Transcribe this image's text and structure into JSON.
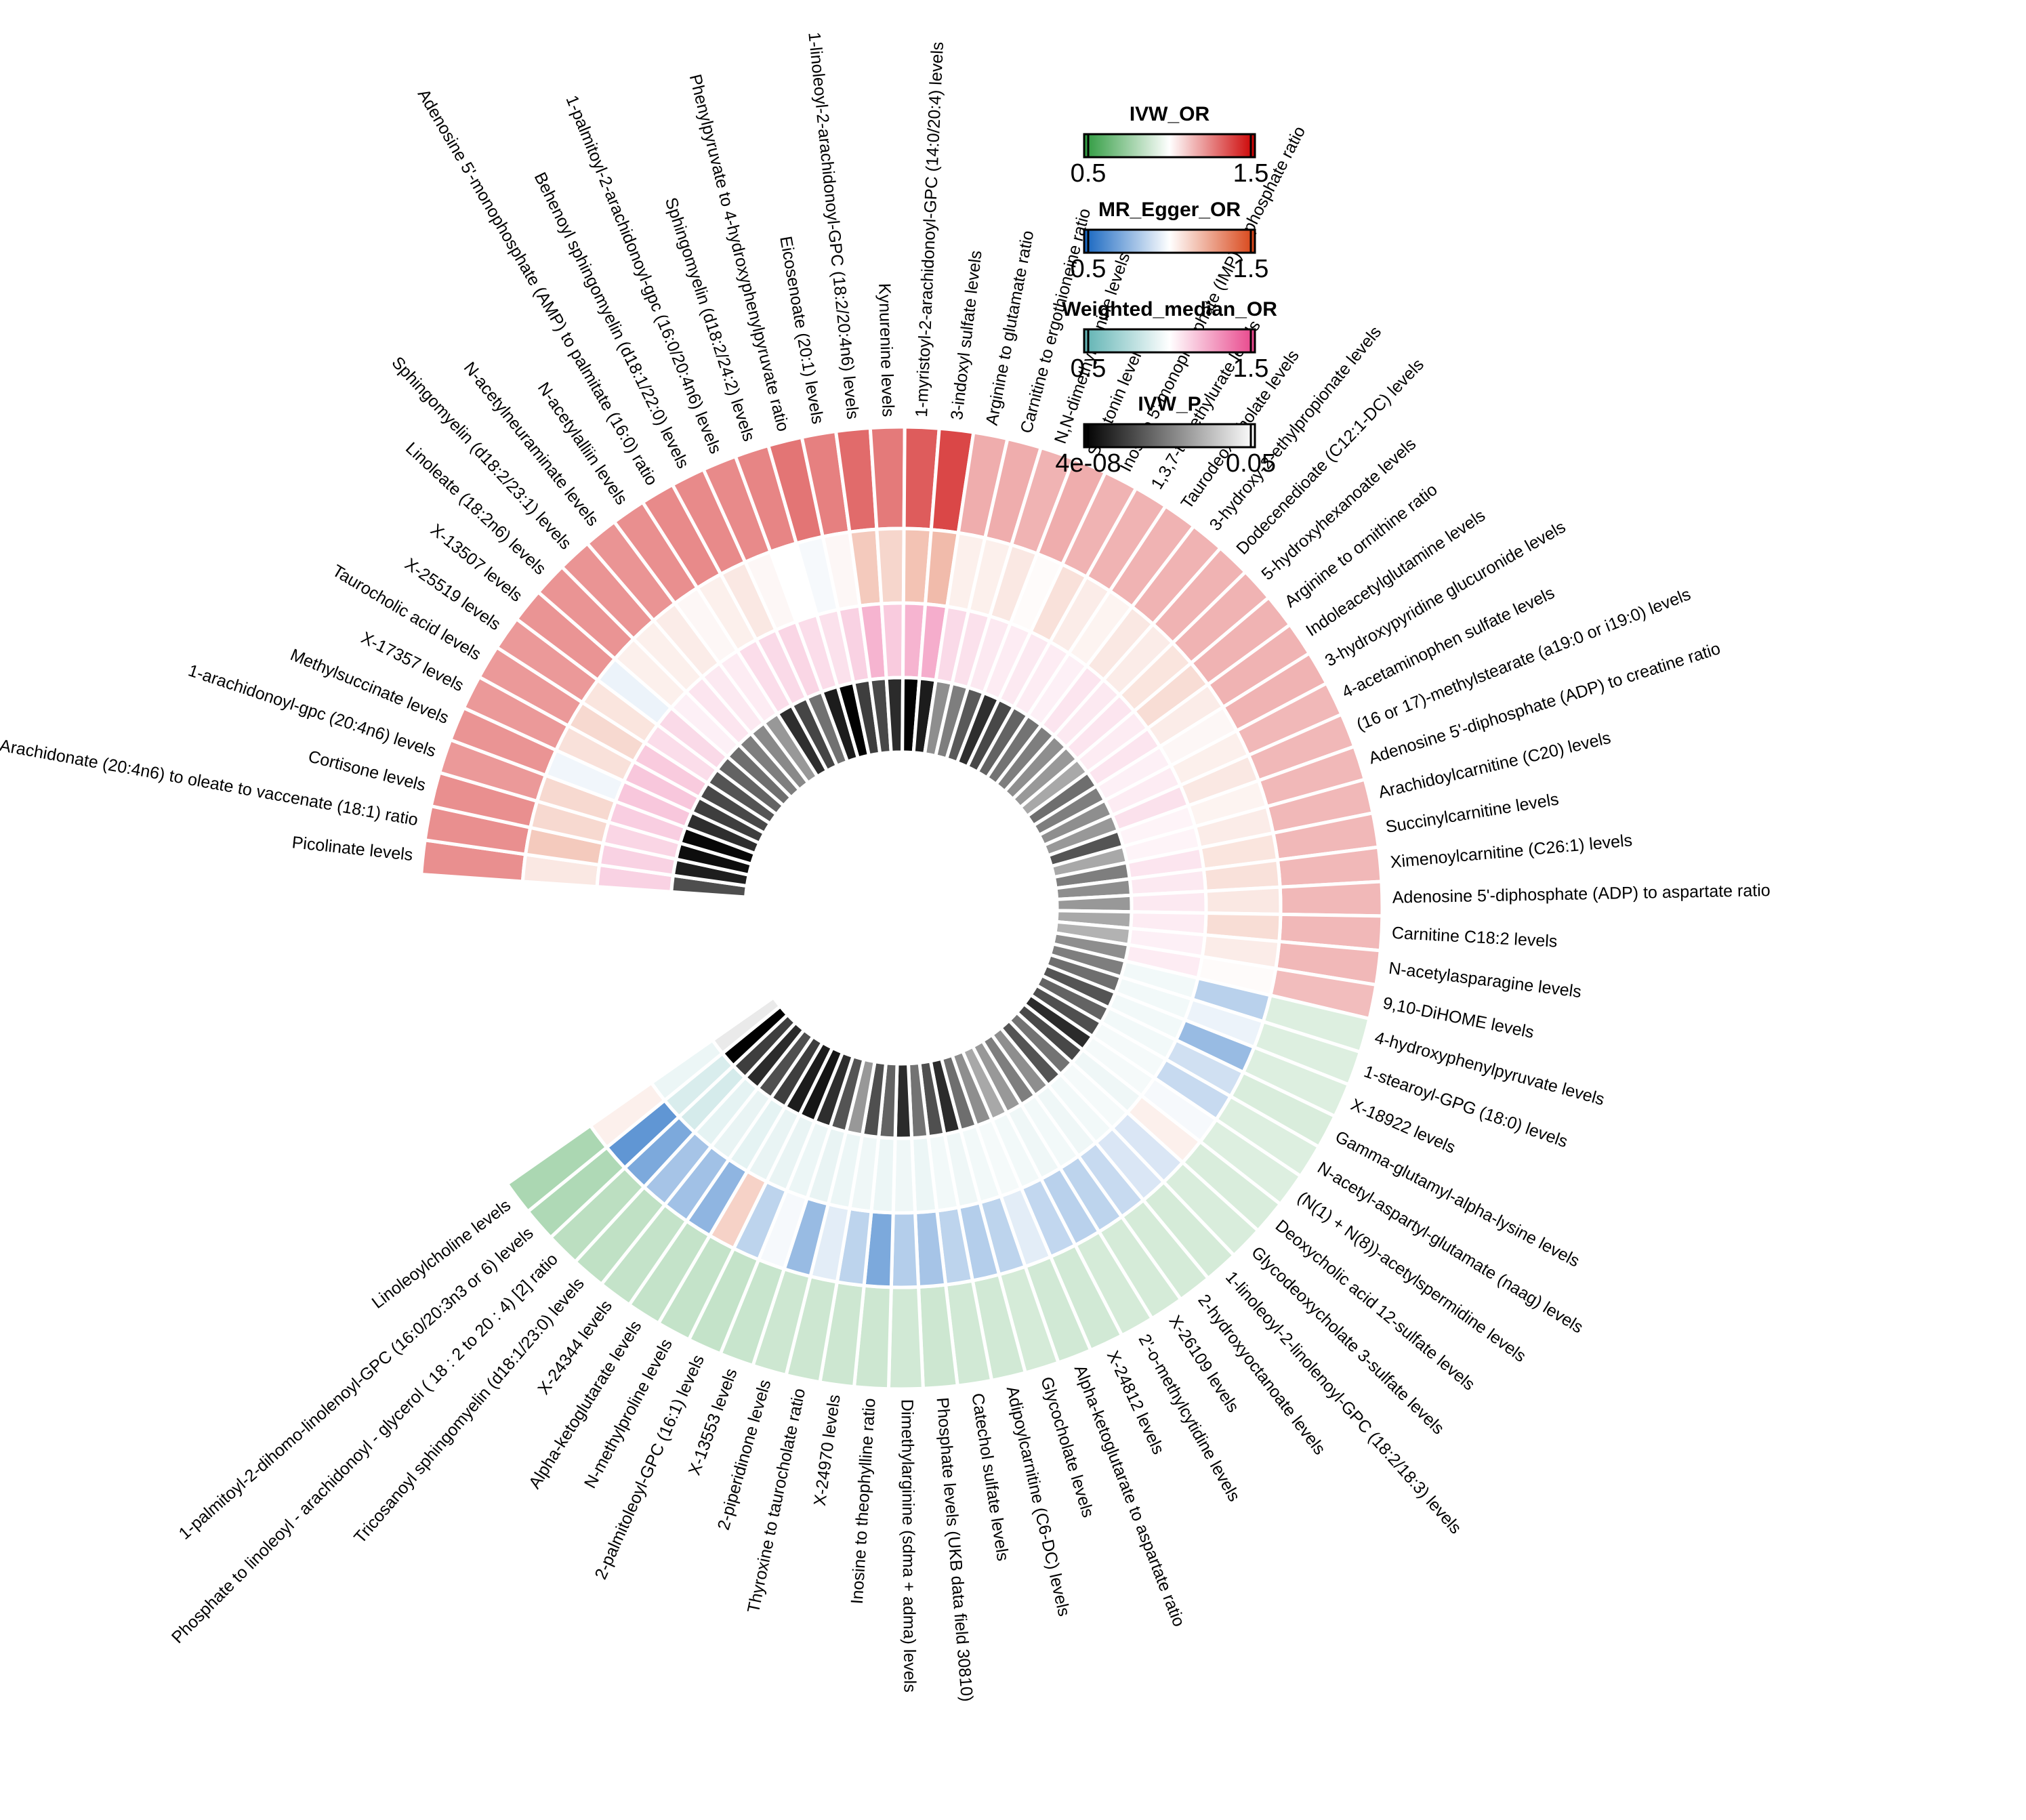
{
  "chart_data": {
    "type": "heatmap",
    "layout": "circular",
    "rings_outer_to_inner": [
      "IVW_OR",
      "MR_Egger_OR",
      "Weighted_median_OR",
      "IVW_P"
    ],
    "legends": [
      {
        "title": "IVW_OR",
        "min_label": "0.5",
        "max_label": "1.5",
        "min": 0.5,
        "max": 1.5,
        "colors": [
          "#2d9a3e",
          "#ffffff",
          "#cc0000"
        ]
      },
      {
        "title": "MR_Egger_OR",
        "min_label": "0.5",
        "max_label": "1.5",
        "min": 0.5,
        "max": 1.5,
        "colors": [
          "#1565c0",
          "#ffffff",
          "#d84315"
        ]
      },
      {
        "title": "Weighted_median_OR",
        "min_label": "0.5",
        "max_label": "1.5",
        "min": 0.5,
        "max": 1.5,
        "colors": [
          "#5fb3b3",
          "#ffffff",
          "#e8448a"
        ]
      },
      {
        "title": "IVW_P",
        "min_label": "4e-08",
        "max_label": "0.05",
        "min": 4e-08,
        "max": 0.05,
        "colors": [
          "#000000",
          "#ffffff"
        ]
      }
    ],
    "metabolites": [
      {
        "name": "Picolinate levels",
        "ivw_or": 1.22,
        "egger_or": 1.06,
        "wm_or": 1.12,
        "ivw_p": 0.0153
      },
      {
        "name": "Arachidonate (20:4n6) to oleate to vaccenate (18:1) ratio",
        "ivw_or": 1.22,
        "egger_or": 1.14,
        "wm_or": 1.12,
        "ivw_p": 0.0059
      },
      {
        "name": "Cortisone levels",
        "ivw_or": 1.22,
        "egger_or": 1.1,
        "wm_or": 1.11,
        "ivw_p": 0.0026
      },
      {
        "name": "1-arachidonoyl-gpc (20:4n6) levels",
        "ivw_or": 1.2,
        "egger_or": 1.1,
        "wm_or": 1.13,
        "ivw_p": 0.0014
      },
      {
        "name": "Methylsuccinate levels",
        "ivw_or": 1.21,
        "egger_or": 0.97,
        "wm_or": 1.15,
        "ivw_p": 0.0091
      },
      {
        "name": "X-17357 levels",
        "ivw_or": 1.2,
        "egger_or": 1.08,
        "wm_or": 1.15,
        "ivw_p": 0.0121
      },
      {
        "name": "Taurocholic acid levels",
        "ivw_or": 1.2,
        "egger_or": 1.1,
        "wm_or": 1.14,
        "ivw_p": 0.0142
      },
      {
        "name": "X-25519 levels",
        "ivw_or": 1.2,
        "egger_or": 1.07,
        "wm_or": 1.09,
        "ivw_p": 0.0164
      },
      {
        "name": "X-13507 levels",
        "ivw_or": 1.21,
        "egger_or": 0.96,
        "wm_or": 1.1,
        "ivw_p": 0.0195
      },
      {
        "name": "Linoleate (18:2n6) levels",
        "ivw_or": 1.21,
        "egger_or": 1.04,
        "wm_or": 1.04,
        "ivw_p": 0.0216
      },
      {
        "name": "Sphingomyelin (d18:2/23:1) levels",
        "ivw_or": 1.21,
        "egger_or": 1.04,
        "wm_or": 1.07,
        "ivw_p": 0.0247
      },
      {
        "name": "N-acetylneuraminate levels",
        "ivw_or": 1.21,
        "egger_or": 1.05,
        "wm_or": 1.06,
        "ivw_p": 0.0268
      },
      {
        "name": "N-acetylalliin levels",
        "ivw_or": 1.22,
        "egger_or": 1.02,
        "wm_or": 1.05,
        "ivw_p": 0.0298
      },
      {
        "name": "Adenosine 5'-monophosphate (AMP) to palmitate (16:0) ratio",
        "ivw_or": 1.23,
        "egger_or": 1.04,
        "wm_or": 1.09,
        "ivw_p": 0.0091
      },
      {
        "name": "Behenoyl sphingomyelin (d18:1/22:0) levels",
        "ivw_or": 1.23,
        "egger_or": 1.06,
        "wm_or": 1.1,
        "ivw_p": 0.0135
      },
      {
        "name": "1-palmitoyl-2-arachidonoyl-gpc (16:0/20:4n6) levels",
        "ivw_or": 1.23,
        "egger_or": 1.02,
        "wm_or": 1.11,
        "ivw_p": 0.0222
      },
      {
        "name": "Sphingomyelin (d18:2/24:2) levels",
        "ivw_or": 1.24,
        "egger_or": 1.0,
        "wm_or": 1.09,
        "ivw_p": 0.0054
      },
      {
        "name": "Phenylpyruvate to 4-hydroxyphenylpyruvate ratio",
        "ivw_or": 1.27,
        "egger_or": 0.98,
        "wm_or": 1.08,
        "ivw_p": 0.0002
      },
      {
        "name": "Eicosenoate (20:1) levels",
        "ivw_or": 1.25,
        "egger_or": 1.02,
        "wm_or": 1.12,
        "ivw_p": 0.0121
      },
      {
        "name": "1-linoleoyl-2-arachidonoyl-GPC (18:2/20:4n6) levels",
        "ivw_or": 1.29,
        "egger_or": 1.14,
        "wm_or": 1.2,
        "ivw_p": 0.0142
      },
      {
        "name": "Kynurenine levels",
        "ivw_or": 1.26,
        "egger_or": 1.11,
        "wm_or": 1.14,
        "ivw_p": 0.0085
      },
      {
        "name": "1-myristoyl-2-arachidonoyl-GPC (14:0/20:4) levels",
        "ivw_or": 1.32,
        "egger_or": 1.16,
        "wm_or": 1.2,
        "ivw_p": 0.0003
      },
      {
        "name": "3-indoxyl sulfate levels",
        "ivw_or": 1.36,
        "egger_or": 1.18,
        "wm_or": 1.22,
        "ivw_p": 0.0054
      },
      {
        "name": "Arginine to glutamate ratio",
        "ivw_or": 1.16,
        "egger_or": 1.04,
        "wm_or": 1.1,
        "ivw_p": 0.0278
      },
      {
        "name": "Carnitine to ergothioneine ratio",
        "ivw_or": 1.16,
        "egger_or": 1.04,
        "wm_or": 1.08,
        "ivw_p": 0.0247
      },
      {
        "name": "N,N-dimethylalanine levels",
        "ivw_or": 1.15,
        "egger_or": 1.06,
        "wm_or": 1.06,
        "ivw_p": 0.0175
      },
      {
        "name": "Serotonin levels",
        "ivw_or": 1.16,
        "egger_or": 1.01,
        "wm_or": 1.05,
        "ivw_p": 0.0091
      },
      {
        "name": "Inosine 5'-monophosphate (IMP) to phosphate ratio",
        "ivw_or": 1.15,
        "egger_or": 1.08,
        "wm_or": 1.06,
        "ivw_p": 0.0142
      },
      {
        "name": "1,3,7-trimethylurate levels",
        "ivw_or": 1.15,
        "egger_or": 1.05,
        "wm_or": 1.05,
        "ivw_p": 0.0195
      },
      {
        "name": "Taurodeoxycholate levels",
        "ivw_or": 1.15,
        "egger_or": 1.03,
        "wm_or": 1.04,
        "ivw_p": 0.0226
      },
      {
        "name": "3-hydroxy-2-ethylpropionate levels",
        "ivw_or": 1.15,
        "egger_or": 1.06,
        "wm_or": 1.07,
        "ivw_p": 0.0247
      },
      {
        "name": "Dodecenedioate (C12:1-DC) levels",
        "ivw_or": 1.15,
        "egger_or": 1.05,
        "wm_or": 1.06,
        "ivw_p": 0.0278
      },
      {
        "name": "5-hydroxyhexanoate levels",
        "ivw_or": 1.15,
        "egger_or": 1.07,
        "wm_or": 1.07,
        "ivw_p": 0.0298
      },
      {
        "name": "Arginine to ornithine ratio",
        "ivw_or": 1.15,
        "egger_or": 1.09,
        "wm_or": 1.05,
        "ivw_p": 0.0329
      },
      {
        "name": "Indoleacetylglutamine levels",
        "ivw_or": 1.15,
        "egger_or": 1.05,
        "wm_or": 1.07,
        "ivw_p": 0.0216
      },
      {
        "name": "3-hydroxypyridine glucuronide levels",
        "ivw_or": 1.15,
        "egger_or": 1.02,
        "wm_or": 1.04,
        "ivw_p": 0.0247
      },
      {
        "name": "4-acetaminophen sulfate levels",
        "ivw_or": 1.14,
        "egger_or": 1.04,
        "wm_or": 1.05,
        "ivw_p": 0.0278
      },
      {
        "name": "(16 or 17)-methylstearate (a19:0 or i19:0) levels",
        "ivw_or": 1.14,
        "egger_or": 1.06,
        "wm_or": 1.08,
        "ivw_p": 0.0298
      },
      {
        "name": "Adenosine 5'-diphosphate (ADP) to creatine ratio",
        "ivw_or": 1.14,
        "egger_or": 1.03,
        "wm_or": 1.03,
        "ivw_p": 0.0164
      },
      {
        "name": "Arachidoylcarnitine (C20) levels",
        "ivw_or": 1.14,
        "egger_or": 1.05,
        "wm_or": 1.03,
        "ivw_p": 0.0329
      },
      {
        "name": "Succinylcarnitine levels",
        "ivw_or": 1.14,
        "egger_or": 1.07,
        "wm_or": 1.07,
        "ivw_p": 0.0247
      },
      {
        "name": "Ximenoylcarnitine (C26:1) levels",
        "ivw_or": 1.14,
        "egger_or": 1.08,
        "wm_or": 1.06,
        "ivw_p": 0.0278
      },
      {
        "name": "Adenosine 5'-diphosphate (ADP) to aspartate ratio",
        "ivw_or": 1.14,
        "egger_or": 1.06,
        "wm_or": 1.06,
        "ivw_p": 0.0298
      },
      {
        "name": "Carnitine C18:2 levels",
        "ivw_or": 1.14,
        "egger_or": 1.09,
        "wm_or": 1.05,
        "ivw_p": 0.0329
      },
      {
        "name": "N-acetylasparagine levels",
        "ivw_or": 1.14,
        "egger_or": 1.05,
        "wm_or": 1.04,
        "ivw_p": 0.0349
      },
      {
        "name": "9,10-DiHOME levels",
        "ivw_or": 1.13,
        "egger_or": 1.01,
        "wm_or": 1.05,
        "ivw_p": 0.0278
      },
      {
        "name": "4-hydroxyphenylpyruvate levels",
        "ivw_or": 0.92,
        "egger_or": 0.85,
        "wm_or": 0.96,
        "ivw_p": 0.0247
      },
      {
        "name": "1-stearoyl-GPG (18:0) levels",
        "ivw_or": 0.92,
        "egger_or": 0.96,
        "wm_or": 0.96,
        "ivw_p": 0.0216
      },
      {
        "name": "X-18922 levels",
        "ivw_or": 0.92,
        "egger_or": 0.78,
        "wm_or": 0.96,
        "ivw_p": 0.0164
      },
      {
        "name": "Gamma-glutamyl-alpha-lysine levels",
        "ivw_or": 0.91,
        "egger_or": 0.9,
        "wm_or": 0.96,
        "ivw_p": 0.0195
      },
      {
        "name": "N-acetyl-aspartyl-glutamate (naag) levels",
        "ivw_or": 0.92,
        "egger_or": 0.88,
        "wm_or": 0.97,
        "ivw_p": 0.0154
      },
      {
        "name": "(N(1) + N(8))-acetylspermidine levels",
        "ivw_or": 0.92,
        "egger_or": 0.98,
        "wm_or": 0.97,
        "ivw_p": 0.0085
      },
      {
        "name": "Deoxycholic acid 12-sulfate levels",
        "ivw_or": 0.91,
        "egger_or": 1.04,
        "wm_or": 0.95,
        "ivw_p": 0.0142
      },
      {
        "name": "Glycodeoxycholate 3-sulfate levels",
        "ivw_or": 0.91,
        "egger_or": 0.92,
        "wm_or": 0.97,
        "ivw_p": 0.0226
      },
      {
        "name": "1-linoleoyl-2-linolenoyl-GPC (18:2/18:3) levels",
        "ivw_or": 0.9,
        "egger_or": 0.92,
        "wm_or": 0.96,
        "ivw_p": 0.0164
      },
      {
        "name": "2-hydroxyoctanoate levels",
        "ivw_or": 0.9,
        "egger_or": 0.88,
        "wm_or": 0.95,
        "ivw_p": 0.0278
      },
      {
        "name": "X-26109 levels",
        "ivw_or": 0.9,
        "egger_or": 0.86,
        "wm_or": 0.96,
        "ivw_p": 0.0247
      },
      {
        "name": "2'-o-methylcytidine levels",
        "ivw_or": 0.9,
        "egger_or": 0.85,
        "wm_or": 0.95,
        "ivw_p": 0.0298
      },
      {
        "name": "X-24812 levels",
        "ivw_or": 0.89,
        "egger_or": 0.87,
        "wm_or": 0.96,
        "ivw_p": 0.0329
      },
      {
        "name": "Alpha-ketoglutarate to aspartate ratio",
        "ivw_or": 0.89,
        "egger_or": 0.94,
        "wm_or": 0.97,
        "ivw_p": 0.0278
      },
      {
        "name": "Glycocholate levels",
        "ivw_or": 0.9,
        "egger_or": 0.86,
        "wm_or": 0.96,
        "ivw_p": 0.0216
      },
      {
        "name": "Adipoylcarnitine (C6-DC) levels",
        "ivw_or": 0.89,
        "egger_or": 0.84,
        "wm_or": 0.95,
        "ivw_p": 0.0085
      },
      {
        "name": "Catechol sulfate levels",
        "ivw_or": 0.89,
        "egger_or": 0.86,
        "wm_or": 0.96,
        "ivw_p": 0.0154
      },
      {
        "name": "Phosphate levels (UKB data field 30810)",
        "ivw_or": 0.88,
        "egger_or": 0.81,
        "wm_or": 0.94,
        "ivw_p": 0.0226
      },
      {
        "name": "Dimethylarginine (sdma + adma) levels",
        "ivw_or": 0.89,
        "egger_or": 0.84,
        "wm_or": 0.95,
        "ivw_p": 0.0085
      },
      {
        "name": "Inosine to theophylline ratio",
        "ivw_or": 0.88,
        "egger_or": 0.72,
        "wm_or": 0.94,
        "ivw_p": 0.0195
      },
      {
        "name": "X-24970 levels",
        "ivw_or": 0.88,
        "egger_or": 0.86,
        "wm_or": 0.95,
        "ivw_p": 0.0154
      },
      {
        "name": "Thyroxine to taurocholate ratio",
        "ivw_or": 0.88,
        "egger_or": 0.94,
        "wm_or": 0.94,
        "ivw_p": 0.0298
      },
      {
        "name": "2-piperidinone levels",
        "ivw_or": 0.88,
        "egger_or": 0.78,
        "wm_or": 0.93,
        "ivw_p": 0.0164
      },
      {
        "name": "X-13553 levels",
        "ivw_or": 0.87,
        "egger_or": 0.98,
        "wm_or": 0.94,
        "ivw_p": 0.0091
      },
      {
        "name": "2-palmitoleoyl-GPC (16:1) levels",
        "ivw_or": 0.86,
        "egger_or": 0.86,
        "wm_or": 0.93,
        "ivw_p": 0.0042
      },
      {
        "name": "N-methylproline levels",
        "ivw_or": 0.86,
        "egger_or": 1.12,
        "wm_or": 0.93,
        "ivw_p": 0.0054
      },
      {
        "name": "Alpha-ketoglutarate levels",
        "ivw_or": 0.86,
        "egger_or": 0.76,
        "wm_or": 0.92,
        "ivw_p": 0.0122
      },
      {
        "name": "X-24344 levels",
        "ivw_or": 0.86,
        "egger_or": 0.8,
        "wm_or": 0.93,
        "ivw_p": 0.0154
      },
      {
        "name": "Tricosanoyl sphingomyelin (d18:1/23:0) levels",
        "ivw_or": 0.85,
        "egger_or": 0.81,
        "wm_or": 0.92,
        "ivw_p": 0.0085
      },
      {
        "name": "Phosphate to linoleoyl - arachidonoyl - glycerol ( 18 : 2 to 20 : 4) [2] ratio",
        "ivw_or": 0.84,
        "egger_or": 0.72,
        "wm_or": 0.87,
        "ivw_p": 0.0122
      },
      {
        "name": "1-palmitoyl-2-dihomo-linolenoyl-GPC (16:0/20:3n3 or 6) levels",
        "ivw_or": 0.81,
        "egger_or": 0.66,
        "wm_or": 0.88,
        "ivw_p": 0.0001
      },
      {
        "name": "Linoleoylcholine levels",
        "ivw_or": 0.8,
        "egger_or": 1.04,
        "wm_or": 0.94,
        "ivw_p": 0.0458
      }
    ]
  }
}
